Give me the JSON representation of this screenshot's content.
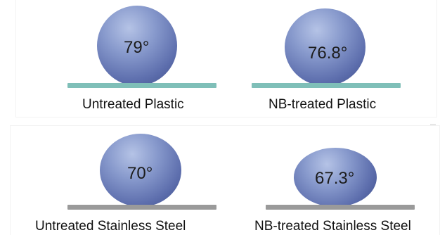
{
  "figure": {
    "colors": {
      "droplet": "#6b7bb8",
      "plastic_surface": "#7fbfb8",
      "steel_surface": "#9a9a9a"
    },
    "samples": [
      {
        "angle": "79°",
        "caption": "Untreated Plastic",
        "substrate": "plastic"
      },
      {
        "angle": "76.8°",
        "caption": "NB-treated Plastic",
        "substrate": "plastic"
      },
      {
        "angle": "70°",
        "caption": "Untreated Stainless Steel",
        "substrate": "steel"
      },
      {
        "angle": "67.3°",
        "caption": "NB-treated Stainless Steel",
        "substrate": "steel"
      }
    ]
  }
}
